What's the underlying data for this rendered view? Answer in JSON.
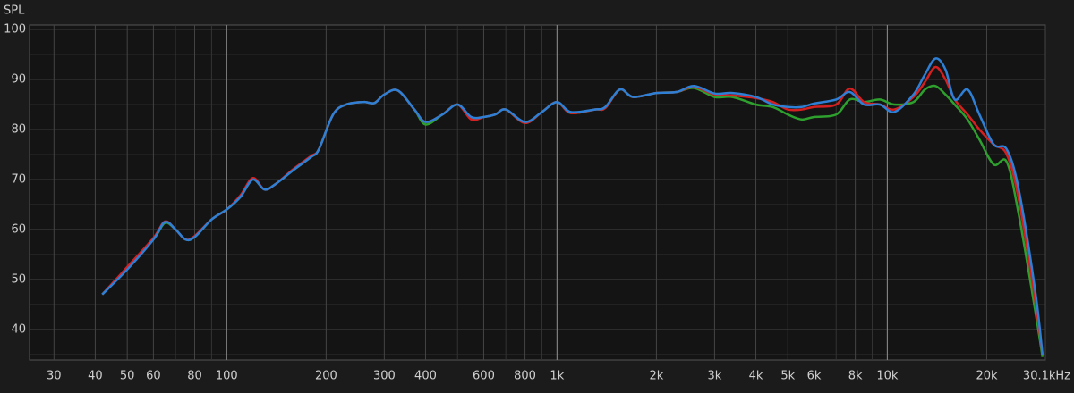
{
  "chart_data": {
    "type": "line",
    "ylabel": "SPL",
    "log_x": true,
    "xlim": [
      25.3,
      30100
    ],
    "ylim": [
      33.9,
      100.9
    ],
    "xticks": [
      30,
      40,
      50,
      60,
      80,
      100,
      200,
      300,
      400,
      600,
      800,
      {
        "value": 1000,
        "label": "1k"
      },
      {
        "value": 2000,
        "label": "2k"
      },
      {
        "value": 3000,
        "label": "3k"
      },
      {
        "value": 4000,
        "label": "4k"
      },
      {
        "value": 5000,
        "label": "5k"
      },
      {
        "value": 6000,
        "label": "6k"
      },
      {
        "value": 8000,
        "label": "8k"
      },
      {
        "value": 10000,
        "label": "10k"
      },
      {
        "value": 20000,
        "label": "20k"
      },
      {
        "value": 30100,
        "label": "30.1kHz"
      }
    ],
    "xgrid_minor": [
      70,
      90,
      500,
      700,
      900,
      7000,
      9000
    ],
    "xgrid_major": [
      100,
      1000,
      10000
    ],
    "yticks": [
      40,
      50,
      60,
      70,
      80,
      90,
      100
    ],
    "ygrid_minor": [
      35,
      45,
      55,
      65,
      75,
      85,
      95
    ],
    "grid": true,
    "x": [
      42,
      50,
      60,
      65,
      70,
      75,
      80,
      90,
      100,
      110,
      120,
      130,
      140,
      160,
      180,
      190,
      210,
      230,
      260,
      280,
      300,
      330,
      370,
      400,
      450,
      500,
      550,
      600,
      650,
      700,
      800,
      900,
      1000,
      1100,
      1300,
      1400,
      1550,
      1700,
      2000,
      2300,
      2600,
      3000,
      3400,
      4000,
      4500,
      5000,
      5500,
      6000,
      7000,
      7700,
      8500,
      9500,
      10500,
      12000,
      13000,
      14000,
      15000,
      16000,
      17500,
      19000,
      21000,
      23000,
      25000,
      28000,
      29500
    ],
    "series": [
      {
        "color": "#2ea02e",
        "values": [
          47,
          52.3,
          58,
          61.3,
          60,
          58,
          58.5,
          62,
          64,
          66.5,
          70,
          68,
          69,
          72,
          74.5,
          76,
          83,
          85,
          85.5,
          85.3,
          87,
          87.8,
          84,
          81,
          83,
          85,
          82.3,
          82.5,
          83,
          84,
          81.3,
          83.5,
          85.5,
          83.3,
          84,
          84.3,
          88,
          86.5,
          87.3,
          87.5,
          88.3,
          86.5,
          86.5,
          85,
          84.5,
          83,
          82,
          82.5,
          83,
          86,
          85.5,
          86,
          85,
          85.5,
          88,
          88.7,
          87,
          85,
          82,
          78,
          73,
          73.5,
          63,
          44,
          34.5
        ]
      },
      {
        "color": "#d42020",
        "values": [
          47,
          52.5,
          58.3,
          61.6,
          60,
          58,
          58.7,
          62,
          64,
          66.8,
          70.3,
          68,
          69,
          72.2,
          74.7,
          76,
          83,
          85,
          85.5,
          85.3,
          87,
          87.8,
          84,
          81.5,
          83,
          85,
          82,
          82.5,
          83,
          84,
          81.3,
          83.5,
          85.5,
          83.3,
          84,
          84.3,
          88,
          86.5,
          87.3,
          87.5,
          88.5,
          87,
          86.8,
          86.3,
          85.5,
          84,
          84,
          84.5,
          85,
          88.2,
          85.5,
          85,
          84,
          86.5,
          89.5,
          92.5,
          90,
          86,
          83,
          80,
          77,
          75,
          66,
          46,
          35
        ]
      },
      {
        "color": "#2e7fd6",
        "values": [
          47,
          52,
          58,
          61.5,
          60,
          58,
          58.5,
          62,
          64,
          66.5,
          70,
          68,
          69,
          72,
          74.5,
          76,
          83,
          85,
          85.5,
          85.3,
          87,
          87.8,
          84,
          81.5,
          83,
          85,
          82.5,
          82.5,
          83,
          84,
          81.5,
          83.5,
          85.5,
          83.5,
          84,
          84.5,
          88,
          86.5,
          87.3,
          87.5,
          88.7,
          87.2,
          87.3,
          86.5,
          85,
          84.5,
          84.5,
          85.2,
          86,
          87.5,
          85,
          85,
          83.5,
          87,
          91,
          94.2,
          92,
          86,
          88,
          83,
          77,
          76,
          68,
          48,
          35
        ]
      }
    ]
  }
}
